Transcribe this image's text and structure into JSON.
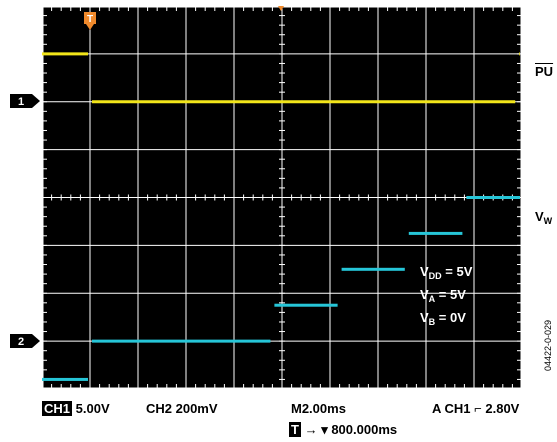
{
  "scope": {
    "channel_markers": [
      "1",
      "2"
    ],
    "trigger_marker": "T",
    "annotation": {
      "vdd": {
        "symbol": "V",
        "sub": "DD",
        "value": "= 5V"
      },
      "va": {
        "symbol": "V",
        "sub": "A",
        "value": "= 5V"
      },
      "vb": {
        "symbol": "V",
        "sub": "B",
        "value": "= 0V"
      }
    },
    "colors": {
      "screen": "#000000",
      "grid": "#ffffff",
      "ch1": "#f2e51a",
      "ch2": "#26c6d8",
      "trigger": "#f08a2c"
    }
  },
  "side_labels": {
    "pu": {
      "text": "PU"
    },
    "vw": {
      "symbol": "V",
      "sub": "W"
    }
  },
  "status_bar": {
    "ch1_tag": "CH1",
    "ch1_scale": "5.00V",
    "ch2": "CH2  200mV",
    "timebase": "M2.00ms",
    "trigger": "A  CH1",
    "trigger_edge": "⌊",
    "trigger_level": "2.80V",
    "trigger_tag": "T",
    "trigger_pos": "→ ▾ 800.000ms"
  },
  "figure_id": "04422-0-029",
  "waveforms": {
    "ch1": {
      "unit": "divisions",
      "segments": [
        {
          "t0": 0,
          "t1": 1,
          "level": 7.0
        },
        {
          "t0": 1,
          "t1": 9.9,
          "level": 6.0
        },
        {
          "t0": 9.9,
          "t1": 10,
          "level": 7.0
        }
      ]
    },
    "ch2": {
      "unit": "divisions",
      "segments": [
        {
          "t0": 0,
          "t1": 1,
          "level": 0.2
        },
        {
          "t0": 1,
          "t1": 4.8,
          "level": 1.0
        },
        {
          "t0": 4.8,
          "t1": 6.2,
          "level": 1.75
        },
        {
          "t0": 6.2,
          "t1": 7.6,
          "level": 2.5
        },
        {
          "t0": 7.6,
          "t1": 8.8,
          "level": 3.25
        },
        {
          "t0": 8.8,
          "t1": 10,
          "level": 4.0
        }
      ]
    }
  }
}
